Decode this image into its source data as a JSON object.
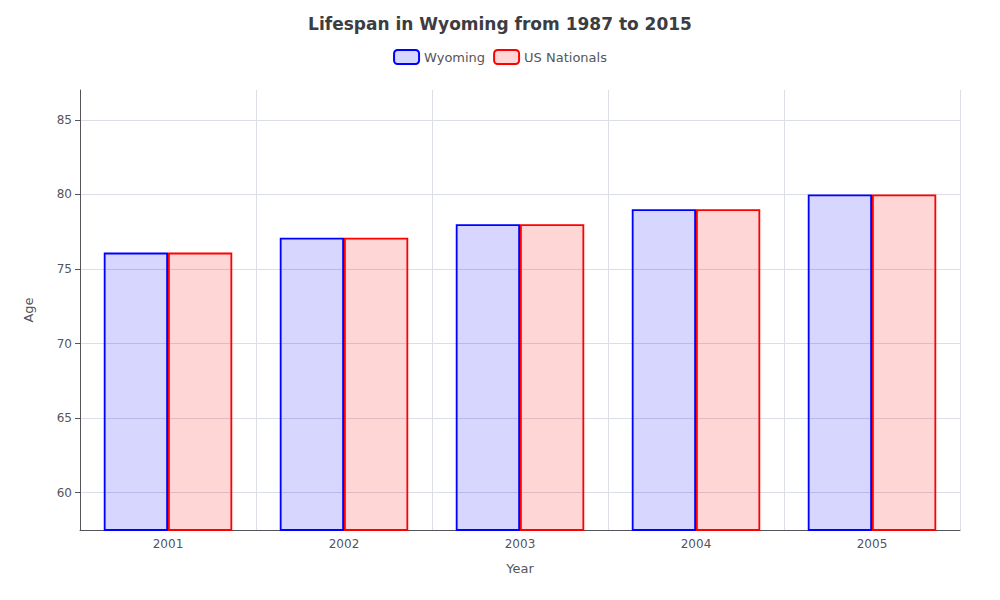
{
  "chart_data": {
    "type": "bar",
    "title": "Lifespan in Wyoming from 1987 to 2015",
    "x_label": "Year",
    "y_label": "Age",
    "categories": [
      "2001",
      "2002",
      "2003",
      "2004",
      "2005"
    ],
    "series": [
      {
        "name": "Wyoming",
        "color": "#0000ff",
        "values": [
          76.1,
          77.1,
          78.0,
          79.0,
          80.0
        ]
      },
      {
        "name": "US Nationals",
        "color": "#ff0000",
        "values": [
          76.1,
          77.1,
          78.0,
          79.0,
          80.0
        ]
      }
    ],
    "ylim": [
      57.5,
      87
    ],
    "yticks": [
      60,
      65,
      70,
      75,
      80,
      85
    ],
    "grid": true,
    "legend": "top"
  }
}
